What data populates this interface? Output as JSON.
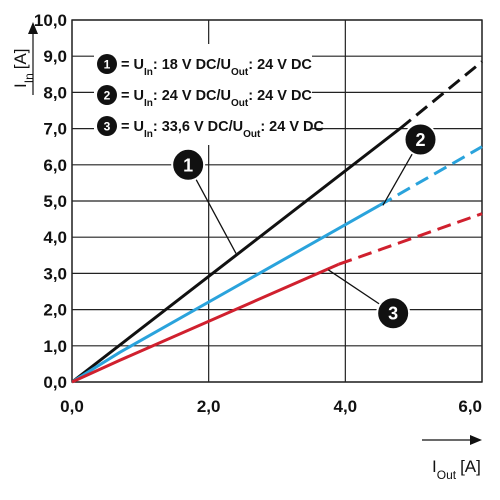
{
  "chart_data": {
    "type": "line",
    "x_axis": {
      "label": "I",
      "label_sub": "Out",
      "unit": "[A]",
      "range": [
        0,
        6
      ],
      "ticks": [
        "0,0",
        "2,0",
        "4,0",
        "6,0"
      ]
    },
    "y_axis": {
      "label": "I",
      "label_sub": "In",
      "unit": "[A]",
      "range": [
        0,
        10
      ],
      "ticks": [
        "0,0",
        "1,0",
        "2,0",
        "3,0",
        "4,0",
        "5,0",
        "6,0",
        "7,0",
        "8,0",
        "9,0",
        "10,0"
      ]
    },
    "grid": true,
    "legend_position": "top-left",
    "series": [
      {
        "id": "1",
        "legend": {
          "prefix": "= U",
          "sub1": "In",
          "mid": ": 18 V DC/U",
          "sub2": "Out",
          "suffix": ": 24 V DC"
        },
        "color": "#111111",
        "solid": [
          [
            0,
            0
          ],
          [
            4.8,
            7.0
          ]
        ],
        "dashed": [
          [
            4.8,
            7.0
          ],
          [
            6.0,
            8.85
          ]
        ],
        "callout": {
          "x": 1.7,
          "y": 6.0,
          "target": [
            2.4,
            3.55
          ]
        }
      },
      {
        "id": "2",
        "legend": {
          "prefix": "= U",
          "sub1": "In",
          "mid": ": 24 V DC/U",
          "sub2": "Out",
          "suffix": ": 24 V DC"
        },
        "color": "#2aa3dc",
        "solid": [
          [
            0,
            0
          ],
          [
            0.7,
            0.82
          ],
          [
            4.5,
            4.88
          ]
        ],
        "dashed": [
          [
            4.5,
            4.88
          ],
          [
            6.0,
            6.5
          ]
        ],
        "callout": {
          "x": 5.1,
          "y": 6.7,
          "target": [
            4.55,
            4.88
          ]
        }
      },
      {
        "id": "3",
        "legend": {
          "prefix": "= U",
          "sub1": "In",
          "mid": ": 33,6 V DC/U",
          "sub2": "Out",
          "suffix": ": 24 V DC"
        },
        "color": "#d0202e",
        "solid": [
          [
            0,
            0
          ],
          [
            0.7,
            0.6
          ],
          [
            3.9,
            3.25
          ]
        ],
        "dashed": [
          [
            3.9,
            3.25
          ],
          [
            6.0,
            4.65
          ]
        ],
        "callout": {
          "x": 4.7,
          "y": 1.9,
          "target": [
            3.75,
            3.1
          ]
        }
      }
    ]
  }
}
